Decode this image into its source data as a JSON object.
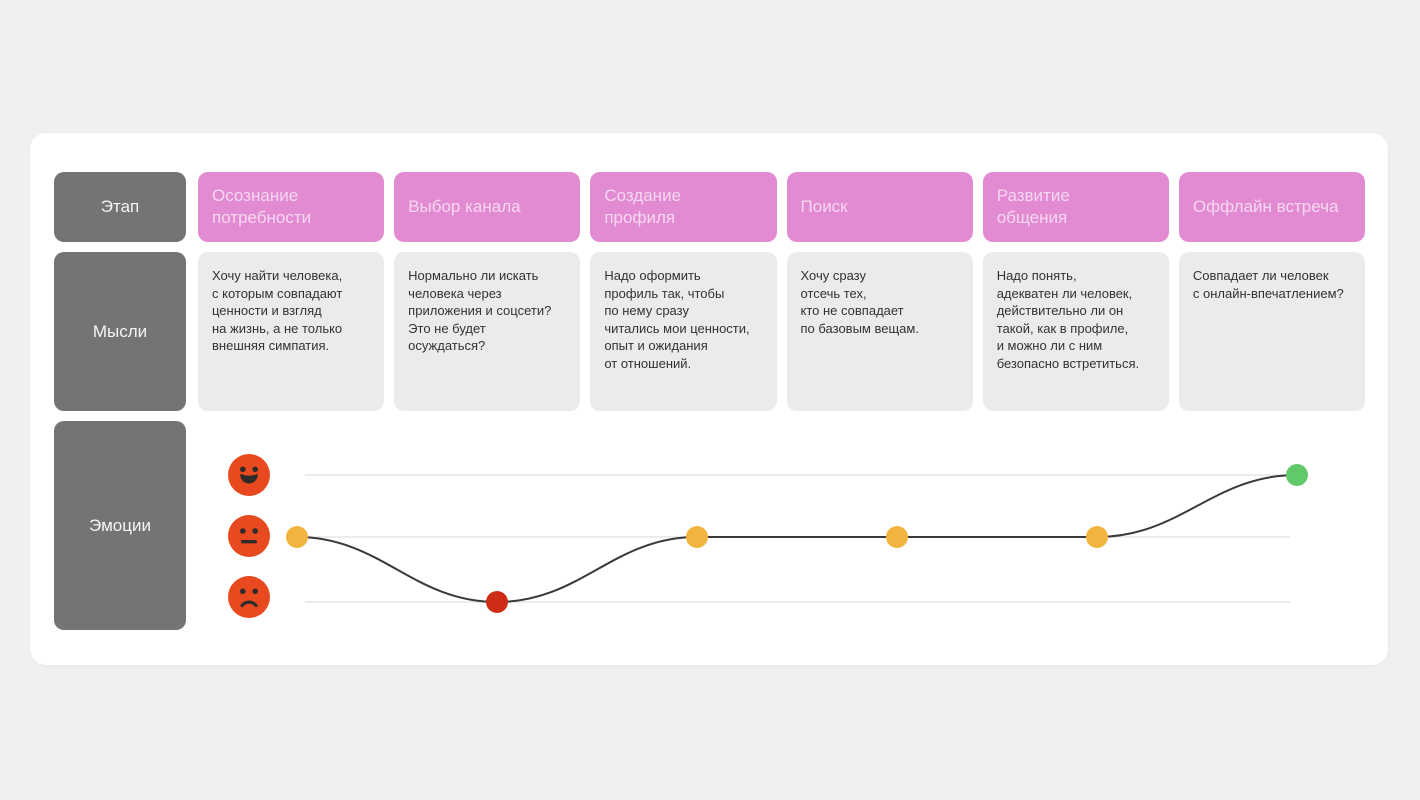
{
  "journey_map": {
    "row_labels": {
      "stage": "Этап",
      "thoughts": "Мысли",
      "emotions": "Эмоции"
    },
    "stages": [
      {
        "title": "Осознание потребности",
        "title_display": "Осознание\nпотребности",
        "thought": "Хочу найти человека,\nс которым совпадают\nценности и взгляд\nна жизнь, а не только\nвнешняя симпатия.",
        "emotion": "neutral"
      },
      {
        "title": "Выбор канала",
        "title_display": "Выбор канала",
        "thought": "Нормально ли искать\nчеловека через\nприложения и соцсети?\nЭто не будет\nосуждаться?",
        "emotion": "negative"
      },
      {
        "title": "Создание профиля",
        "title_display": "Создание\nпрофиля",
        "thought": "Надо оформить\nпрофиль так, чтобы\nпо нему сразу\nчитались мои ценности,\nопыт и ожидания\nот отношений.",
        "emotion": "neutral"
      },
      {
        "title": "Поиск",
        "title_display": "Поиск",
        "thought": "Хочу сразу\nотсечь тех,\nкто не совпадает\nпо базовым вещам.",
        "emotion": "neutral"
      },
      {
        "title": "Развитие общения",
        "title_display": "Развитие\nобщения",
        "thought": "Надо понять,\nадекватен ли человек,\nдействительно ли он\nтакой, как в профиле,\nи можно ли с ним\nбезопасно встретиться.",
        "emotion": "neutral"
      },
      {
        "title": "Оффлайн встреча",
        "title_display": "Оффлайн встреча",
        "thought": "Совпадает ли человек\nс онлайн-впечатлением?",
        "emotion": "positive"
      }
    ],
    "emotion_icons": [
      {
        "name": "happy-face-icon",
        "level": "positive",
        "color": "#E8491E"
      },
      {
        "name": "neutral-face-icon",
        "level": "neutral",
        "color": "#E8491E"
      },
      {
        "name": "sad-face-icon",
        "level": "negative",
        "color": "#E8491E"
      }
    ],
    "colors": {
      "page_background": "#F0F0EF",
      "card_background": "#FFFFFF",
      "stage_header": "#E28BD3",
      "row_label": "#757474",
      "thought_card": "#EBEBEA",
      "emoji": "#E8491E"
    },
    "chart_data": {
      "type": "line",
      "title": "Эмоции",
      "categories": [
        "Осознание потребности",
        "Выбор канала",
        "Создание профиля",
        "Поиск",
        "Развитие общения",
        "Оффлайн встреча"
      ],
      "levels": [
        "neutral",
        "negative",
        "neutral",
        "neutral",
        "neutral",
        "positive"
      ],
      "level_scale": [
        "negative",
        "neutral",
        "positive"
      ],
      "grid": true,
      "grid_color": "#E5E5E4",
      "line_color": "#3A3A3A",
      "point_colors": {
        "positive": "#62C96B",
        "neutral": "#F0B43F",
        "negative": "#CE2D15"
      }
    }
  }
}
